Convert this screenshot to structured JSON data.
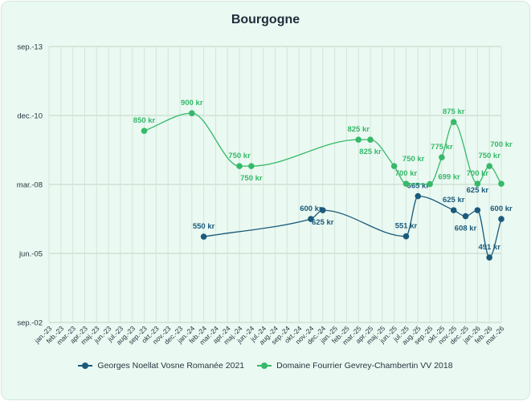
{
  "chart_data": {
    "type": "line",
    "title": "Bourgogne",
    "xlabel": "",
    "ylabel": "",
    "x_categories": [
      "jan.-23",
      "feb.-23",
      "mar.-23",
      "apr.-23",
      "maj.-23",
      "jun.-23",
      "jul.-23",
      "aug.-23",
      "sep.-23",
      "okt.-23",
      "nov.-23",
      "dec.-23",
      "jan.-24",
      "feb.-24",
      "mar.-24",
      "apr.-24",
      "maj.-24",
      "jun.-24",
      "jul.-24",
      "aug.-24",
      "sep.-24",
      "okt.-24",
      "nov.-24",
      "dec.-24",
      "jan.-25",
      "feb.-25",
      "mar.-25",
      "apr.-25",
      "maj.-25",
      "jun.-25",
      "jul.-25",
      "aug.-25",
      "sep.-25",
      "okt.-25",
      "nov.-25",
      "dec.-25",
      "jan.-26",
      "feb.-26",
      "mar.-26"
    ],
    "y_ticks": [
      {
        "value": 1089,
        "label": "sep.-13"
      },
      {
        "value": 893.5,
        "label": "dec.-10"
      },
      {
        "value": 698,
        "label": "mar.-08"
      },
      {
        "value": 502.5,
        "label": "jun.-05"
      },
      {
        "value": 307,
        "label": "sep.-02"
      }
    ],
    "ylim": [
      307,
      1089
    ],
    "grid": true,
    "legend_position": "bottom",
    "series": [
      {
        "name": "Georges Noellat Vosne Romanée 2021",
        "color": "#1b5a7c",
        "points": [
          [
            13,
            550
          ],
          [
            22,
            600
          ],
          [
            23,
            625
          ],
          [
            30,
            551
          ],
          [
            31,
            665
          ],
          [
            34,
            625
          ],
          [
            35,
            608
          ],
          [
            36,
            625
          ],
          [
            37,
            491
          ],
          [
            38,
            600
          ]
        ],
        "labels": [
          "550 kr",
          "600 kr",
          "625 kr",
          "551 kr",
          "665 kr",
          "625 kr",
          "608 kr",
          "625 kr",
          "491 kr",
          "600 kr"
        ]
      },
      {
        "name": "Domaine Fourrier Gevrey-Chambertin VV 2018",
        "color": "#35b96a",
        "points": [
          [
            8,
            850
          ],
          [
            12,
            900
          ],
          [
            16,
            750
          ],
          [
            17,
            750
          ],
          [
            26,
            825
          ],
          [
            27,
            825
          ],
          [
            29,
            750
          ],
          [
            30,
            700
          ],
          [
            32,
            699
          ],
          [
            33,
            775
          ],
          [
            34,
            875
          ],
          [
            36,
            700
          ],
          [
            37,
            750
          ],
          [
            38,
            700
          ]
        ],
        "labels": [
          "850 kr",
          "900 kr",
          "750 kr",
          "750 kr",
          "825 kr",
          "825 kr",
          "750 kr",
          "700 kr",
          "699 kr",
          "775 kr",
          "875 kr",
          "700 kr",
          "750 kr",
          "700 kr"
        ]
      }
    ]
  }
}
